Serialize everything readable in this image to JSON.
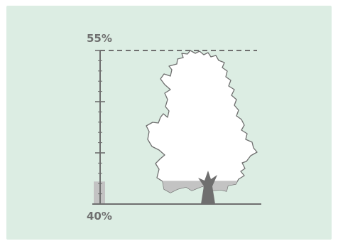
{
  "colors": {
    "background": "#dcede3",
    "ink": "#6f6f6f",
    "tree_fill": "#ffffff",
    "fill_level": "#c3c3c3"
  },
  "gauge": {
    "top_label": "55%",
    "bottom_label": "40%",
    "scale_min": 40,
    "scale_max": 55,
    "level": 42.2
  },
  "icons": {
    "tree": "tree-icon"
  }
}
